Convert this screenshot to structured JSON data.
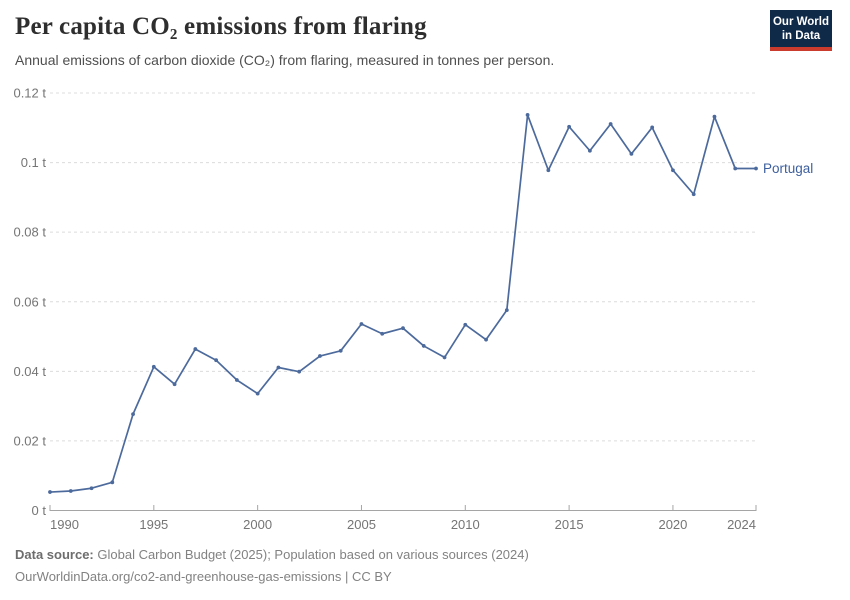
{
  "header": {
    "title": "Per capita CO₂ emissions from flaring",
    "subtitle": "Annual emissions of carbon dioxide (CO₂) from flaring, measured in tonnes per person.",
    "logo": {
      "line1": "Our World",
      "line2": "in Data"
    }
  },
  "chart_data": {
    "type": "line",
    "title": "Per capita CO₂ emissions from flaring",
    "xlabel": "",
    "ylabel": "",
    "unit": "t",
    "xlim": [
      1990,
      2024
    ],
    "ylim": [
      0,
      0.12
    ],
    "x_ticks": [
      1990,
      1995,
      2000,
      2005,
      2010,
      2015,
      2020,
      2024
    ],
    "y_ticks": [
      0,
      0.02,
      0.04,
      0.06,
      0.08,
      0.1,
      0.12
    ],
    "y_tick_labels": [
      "0 t",
      "0.02 t",
      "0.04 t",
      "0.06 t",
      "0.08 t",
      "0.1 t",
      "0.12 t"
    ],
    "grid": "horizontal-dashed",
    "legend_position": "end-of-line-label",
    "series": [
      {
        "name": "Portugal",
        "color": "#4C6A9C",
        "label_color": "#3D5F9E",
        "x": [
          1990,
          1991,
          1992,
          1993,
          1994,
          1995,
          1996,
          1997,
          1998,
          1999,
          2000,
          2001,
          2002,
          2003,
          2004,
          2005,
          2006,
          2007,
          2008,
          2009,
          2010,
          2011,
          2012,
          2013,
          2014,
          2015,
          2016,
          2017,
          2018,
          2019,
          2020,
          2021,
          2022,
          2023,
          2024
        ],
        "values": [
          0.0053,
          0.0056,
          0.0064,
          0.0081,
          0.0277,
          0.0413,
          0.0363,
          0.0464,
          0.0432,
          0.0375,
          0.0336,
          0.0411,
          0.0399,
          0.0444,
          0.0459,
          0.0536,
          0.0508,
          0.0524,
          0.0473,
          0.044,
          0.0534,
          0.0491,
          0.0576,
          0.1137,
          0.0978,
          0.1103,
          0.1034,
          0.1111,
          0.1025,
          0.1101,
          0.0978,
          0.0909,
          0.1132,
          0.0983,
          0.0983
        ]
      }
    ]
  },
  "footer": {
    "datasource_label": "Data source:",
    "datasource_text": "Global Carbon Budget (2025); Population based on various sources (2024)",
    "note_line": "OurWorldinData.org/co2-and-greenhouse-gas-emissions | CC BY"
  }
}
